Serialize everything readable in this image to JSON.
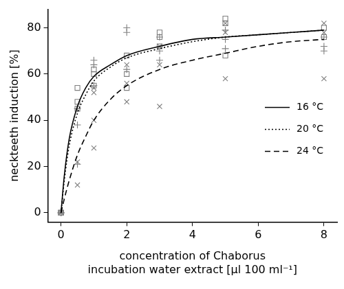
{
  "chart_data": {
    "type": "scatter",
    "x_label": [
      "concentration of Chaborus",
      "incubation water extract [µl 100 ml⁻¹]"
    ],
    "y_label": "neckteeth induction [%]",
    "xlim": [
      -0.4,
      8.4
    ],
    "xticks": [
      0,
      2,
      4,
      6,
      8
    ],
    "ylim": [
      -4,
      88
    ],
    "yticks": [
      0,
      20,
      40,
      60,
      80
    ],
    "grid": false,
    "legend": "right",
    "series": [
      {
        "type": "scatter",
        "marker": "plus",
        "color": "#7f7f7f",
        "x": [
          0,
          0,
          0,
          0.5,
          0.5,
          0.5,
          1,
          1,
          1,
          2,
          2,
          2,
          3,
          3,
          3,
          5,
          5,
          5,
          8,
          8,
          8
        ],
        "values": [
          0,
          0,
          0,
          45,
          38,
          21,
          66,
          64,
          55,
          80,
          78,
          62,
          76,
          70,
          66,
          79,
          75,
          71,
          76,
          72,
          70
        ]
      },
      {
        "type": "scatter",
        "marker": "square",
        "color": "#7f7f7f",
        "x": [
          0,
          0,
          0,
          0.5,
          0.5,
          0.5,
          1,
          1,
          1,
          2,
          2,
          2,
          3,
          3,
          3,
          5,
          5,
          5,
          8,
          8
        ],
        "values": [
          0,
          0,
          0,
          54,
          48,
          45,
          62,
          60,
          55,
          68,
          60,
          54,
          78,
          76,
          72,
          84,
          82,
          68,
          80,
          76
        ]
      },
      {
        "type": "scatter",
        "marker": "x",
        "color": "#7f7f7f",
        "x": [
          0,
          0,
          0.5,
          0.5,
          1,
          1,
          1,
          1,
          2,
          2,
          2,
          3,
          3,
          3,
          5,
          5,
          5,
          8,
          8,
          8
        ],
        "values": [
          0,
          0,
          22,
          12,
          54,
          52,
          40,
          28,
          64,
          56,
          48,
          72,
          64,
          46,
          82,
          78,
          58,
          82,
          78,
          58
        ]
      },
      {
        "type": "line",
        "name": "16 °C",
        "line_style": "solid",
        "color": "#000000",
        "x": [
          0,
          0.1,
          0.25,
          0.5,
          0.75,
          1,
          1.5,
          2,
          3,
          4,
          5,
          6,
          7,
          8
        ],
        "values": [
          0,
          16,
          32,
          46,
          54,
          59,
          64,
          68,
          72,
          75,
          76,
          77,
          78,
          79
        ]
      },
      {
        "type": "line",
        "name": "20 °C",
        "line_style": "dotted",
        "color": "#000000",
        "x": [
          0,
          0.1,
          0.25,
          0.5,
          0.75,
          1,
          1.5,
          2,
          3,
          4,
          5,
          6,
          7,
          8
        ],
        "values": [
          0,
          14,
          29,
          43,
          51,
          57,
          63,
          67,
          71,
          74,
          76,
          77,
          78,
          79
        ]
      },
      {
        "type": "line",
        "name": "24 °C",
        "line_style": "dashed",
        "color": "#000000",
        "x": [
          0,
          0.1,
          0.25,
          0.5,
          0.75,
          1,
          1.5,
          2,
          3,
          4,
          5,
          6,
          7,
          8
        ],
        "values": [
          0,
          6,
          14,
          25,
          33,
          40,
          49,
          55,
          62,
          66,
          69,
          72,
          74,
          75
        ]
      }
    ]
  }
}
